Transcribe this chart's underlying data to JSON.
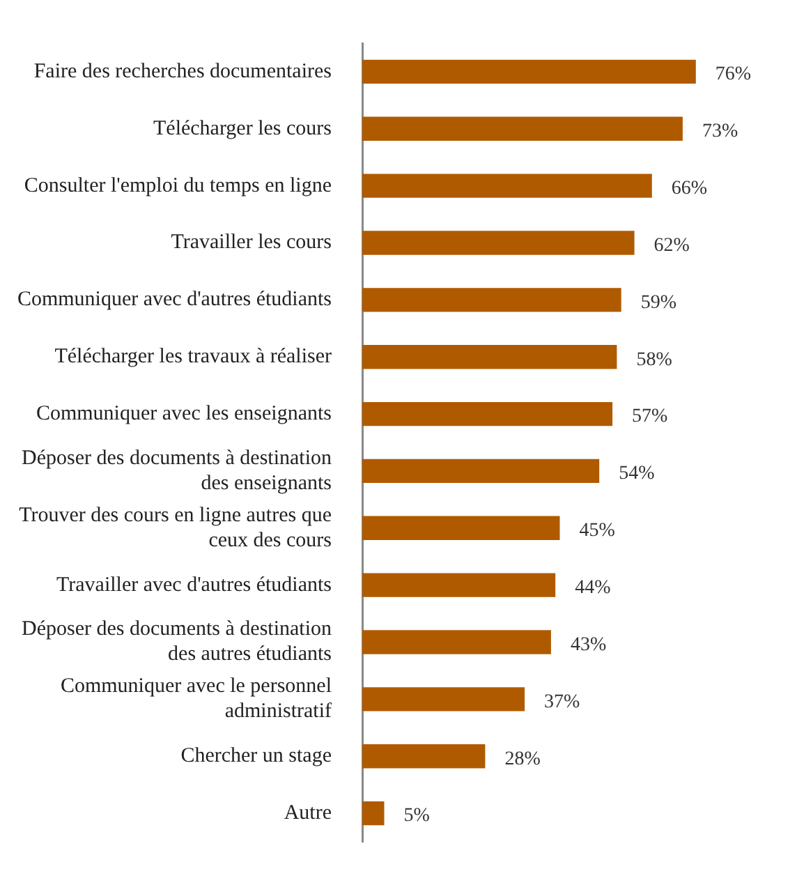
{
  "chart_data": {
    "type": "bar",
    "orientation": "horizontal",
    "categories": [
      "Faire des recherches documentaires",
      "Télécharger les cours",
      "Consulter l'emploi du temps en ligne",
      "Travailler les cours",
      "Communiquer avec d'autres étudiants",
      "Télécharger les travaux à réaliser",
      "Communiquer avec les enseignants",
      "Déposer des documents à destination des enseignants",
      "Trouver des cours en ligne autres que ceux des cours",
      "Travailler avec d'autres étudiants",
      "Déposer des documents à destination des autres étudiants",
      "Communiquer avec le personnel administratif",
      "Chercher un stage",
      "Autre"
    ],
    "values": [
      76,
      73,
      66,
      62,
      59,
      58,
      57,
      54,
      45,
      44,
      43,
      37,
      28,
      5
    ],
    "value_labels": [
      "76%",
      "73%",
      "66%",
      "62%",
      "59%",
      "58%",
      "57%",
      "54%",
      "45%",
      "44%",
      "43%",
      "37%",
      "28%",
      "5%"
    ],
    "color": "#b05a00",
    "tick_labels": "y",
    "grid": false,
    "legend": false
  }
}
